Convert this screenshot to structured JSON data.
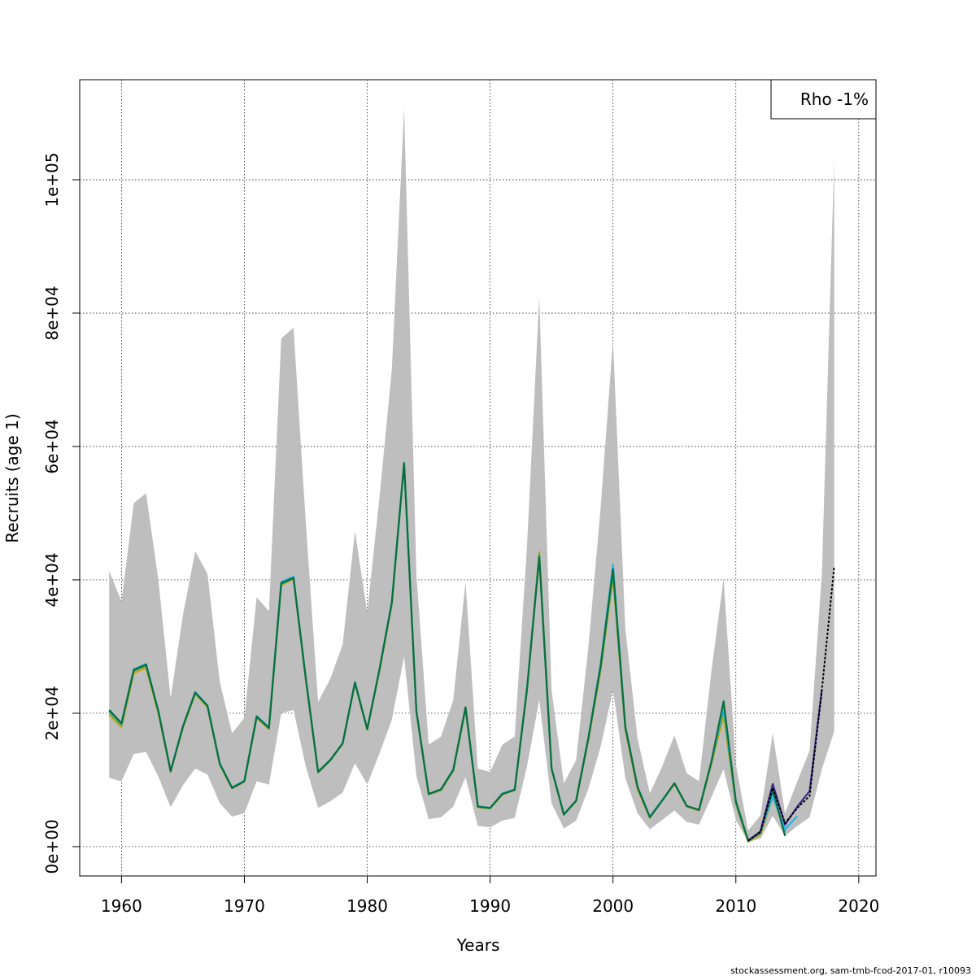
{
  "chart_data": {
    "type": "line",
    "title": "",
    "xlabel": "Years",
    "ylabel": "Recruits (age 1)",
    "xlim": [
      1956.6,
      2021.4
    ],
    "ylim": [
      -4400,
      115000
    ],
    "x_ticks": [
      1960,
      1970,
      1980,
      1990,
      2000,
      2010,
      2020
    ],
    "x_tick_labels": [
      "1960",
      "1970",
      "1980",
      "1990",
      "2000",
      "2010",
      "2020"
    ],
    "y_ticks": [
      0,
      20000,
      40000,
      60000,
      80000,
      100000
    ],
    "y_tick_labels": [
      "0e+00",
      "2e+04",
      "4e+04",
      "6e+04",
      "8e+04",
      "1e+05"
    ],
    "grid": true,
    "legend_position": "top-right",
    "legend_text": "Rho -1%",
    "footer": "stockassessment.org, sam-tmb-fcod-2017-01, r10093",
    "confidence_band": {
      "color": "#bebebe",
      "x": [
        1959,
        1960,
        1961,
        1962,
        1963,
        1964,
        1965,
        1966,
        1967,
        1968,
        1969,
        1970,
        1971,
        1972,
        1973,
        1974,
        1975,
        1976,
        1977,
        1978,
        1979,
        1980,
        1981,
        1982,
        1983,
        1984,
        1985,
        1986,
        1987,
        1988,
        1989,
        1990,
        1991,
        1992,
        1993,
        1994,
        1995,
        1996,
        1997,
        1998,
        1999,
        2000,
        2001,
        2002,
        2003,
        2004,
        2005,
        2006,
        2007,
        2008,
        2009,
        2010,
        2011,
        2012,
        2013,
        2014,
        2015,
        2016,
        2017,
        2018
      ],
      "lower": [
        10300,
        9800,
        13900,
        14200,
        10500,
        5900,
        9200,
        11700,
        10800,
        6500,
        4500,
        5000,
        9800,
        9300,
        20000,
        20500,
        12000,
        5800,
        6800,
        8100,
        12500,
        9300,
        14000,
        19000,
        28500,
        10600,
        4100,
        4400,
        6000,
        10400,
        3100,
        2900,
        3900,
        4300,
        12000,
        22000,
        6500,
        2700,
        3900,
        8700,
        15000,
        23500,
        10300,
        5000,
        2600,
        4000,
        5400,
        3700,
        3300,
        7400,
        11600,
        4000,
        700,
        1200,
        4600,
        1600,
        3100,
        4400,
        11600,
        17300
      ],
      "upper": [
        41300,
        36800,
        51500,
        53000,
        40000,
        22300,
        34700,
        44300,
        40900,
        24700,
        17000,
        19300,
        37400,
        35300,
        76200,
        77800,
        48600,
        21700,
        25200,
        30300,
        47300,
        35100,
        52500,
        71500,
        110700,
        40800,
        15300,
        16500,
        22000,
        39700,
        11700,
        11200,
        15300,
        16500,
        45000,
        82500,
        23500,
        9500,
        13000,
        30000,
        51000,
        76000,
        32700,
        16200,
        8000,
        12000,
        16700,
        11000,
        9800,
        26200,
        40200,
        12300,
        2400,
        4700,
        17000,
        5000,
        9800,
        14400,
        41000,
        103000
      ]
    },
    "series": [
      {
        "color": "#d4a017",
        "x": [
          1959,
          1960,
          1961,
          1962,
          1963,
          1964,
          1965,
          1966,
          1967,
          1968,
          1969,
          1970,
          1971,
          1972,
          1973,
          1974,
          1975,
          1976,
          1977,
          1978,
          1979,
          1980,
          1981,
          1982,
          1983,
          1984,
          1985,
          1986,
          1987,
          1988,
          1989,
          1990,
          1991,
          1992,
          1993,
          1994,
          1995,
          1996,
          1997,
          1998,
          1999,
          2000,
          2001,
          2002,
          2003,
          2004,
          2005,
          2006,
          2007,
          2008,
          2009,
          2010,
          2011,
          2012,
          2013
        ],
        "y": [
          19800,
          17900,
          26000,
          26800,
          20000,
          11200,
          17800,
          22900,
          20900,
          12300,
          8700,
          9700,
          19300,
          17600,
          39200,
          40100,
          25000,
          11100,
          12900,
          15400,
          24500,
          17500,
          26400,
          36300,
          57500,
          20200,
          7800,
          8400,
          11400,
          20600,
          5900,
          5700,
          7800,
          8500,
          23500,
          44200,
          11700,
          4800,
          6800,
          16000,
          26500,
          40400,
          17500,
          8600,
          4300,
          6900,
          9400,
          6000,
          5400,
          12300,
          19600,
          6300,
          700,
          1800,
          7400
        ]
      },
      {
        "color": "#7ab33a",
        "x": [
          1959,
          1960,
          1961,
          1962,
          1963,
          1964,
          1965,
          1966,
          1967,
          1968,
          1969,
          1970,
          1971,
          1972,
          1973,
          1974,
          1975,
          1976,
          1977,
          1978,
          1979,
          1980,
          1981,
          1982,
          1983,
          1984,
          1985,
          1986,
          1987,
          1988,
          1989,
          1990,
          1991,
          1992,
          1993,
          1994,
          1995,
          1996,
          1997,
          1998,
          1999,
          2000,
          2001,
          2002,
          2003,
          2004,
          2005,
          2006,
          2007,
          2008,
          2009,
          2010,
          2011,
          2012,
          2013,
          2014
        ],
        "y": [
          20100,
          18200,
          26300,
          27100,
          20200,
          11300,
          17900,
          23000,
          21000,
          12400,
          8800,
          9800,
          19400,
          17700,
          39300,
          40200,
          25100,
          11100,
          12900,
          15400,
          24500,
          17600,
          26500,
          36400,
          57400,
          20300,
          7800,
          8500,
          11400,
          20700,
          6000,
          5700,
          7900,
          8500,
          23400,
          44000,
          11700,
          4800,
          6800,
          16200,
          26800,
          40800,
          17800,
          8800,
          4400,
          6900,
          9400,
          6000,
          5500,
          12500,
          20400,
          6500,
          800,
          2000,
          7800,
          2200
        ]
      },
      {
        "color": "#1f9e89",
        "x": [
          1959,
          1960,
          1961,
          1962,
          1963,
          1964,
          1965,
          1966,
          1967,
          1968,
          1969,
          1970,
          1971,
          1972,
          1973,
          1974,
          1975,
          1976,
          1977,
          1978,
          1979,
          1980,
          1981,
          1982,
          1983,
          1984,
          1985,
          1986,
          1987,
          1988,
          1989,
          1990,
          1991,
          1992,
          1993,
          1994,
          1995,
          1996,
          1997,
          1998,
          1999,
          2000,
          2001,
          2002,
          2003,
          2004,
          2005,
          2006,
          2007,
          2008,
          2009,
          2010,
          2011,
          2012,
          2013,
          2014
        ],
        "y": [
          20300,
          18300,
          26400,
          27200,
          20300,
          11300,
          18000,
          23100,
          21100,
          12500,
          8800,
          9800,
          19400,
          17800,
          39400,
          40300,
          25200,
          11200,
          13000,
          15500,
          24600,
          17600,
          26600,
          36500,
          57400,
          20300,
          7900,
          8500,
          11500,
          20800,
          6000,
          5800,
          7900,
          8600,
          23600,
          43600,
          11800,
          4800,
          6900,
          16300,
          27000,
          41300,
          17900,
          8900,
          4400,
          6900,
          9500,
          6100,
          5500,
          12600,
          20800,
          6600,
          850,
          2100,
          8000,
          2400
        ]
      },
      {
        "color": "#29b6e8",
        "x": [
          1959,
          1960,
          1961,
          1962,
          1963,
          1964,
          1965,
          1966,
          1967,
          1968,
          1969,
          1970,
          1971,
          1972,
          1973,
          1974,
          1975,
          1976,
          1977,
          1978,
          1979,
          1980,
          1981,
          1982,
          1983,
          1984,
          1985,
          1986,
          1987,
          1988,
          1989,
          1990,
          1991,
          1992,
          1993,
          1994,
          1995,
          1996,
          1997,
          1998,
          1999,
          2000,
          2001,
          2002,
          2003,
          2004,
          2005,
          2006,
          2007,
          2008,
          2009,
          2010,
          2011,
          2012,
          2013,
          2014,
          2015
        ],
        "y": [
          20400,
          18400,
          26600,
          27400,
          20400,
          11400,
          18100,
          23200,
          21200,
          12500,
          8900,
          9900,
          19600,
          17900,
          39700,
          40500,
          25300,
          11200,
          13000,
          15500,
          24700,
          17700,
          26700,
          36700,
          57600,
          20400,
          7900,
          8600,
          11600,
          20900,
          6100,
          5800,
          8000,
          8600,
          23700,
          43500,
          11800,
          4900,
          6900,
          16400,
          27500,
          42300,
          18100,
          9000,
          4500,
          7000,
          9500,
          6100,
          5500,
          12700,
          21100,
          6700,
          900,
          2200,
          7500,
          2600,
          4600
        ]
      },
      {
        "color": "#0b6e3c",
        "x": [
          1959,
          1960,
          1961,
          1962,
          1963,
          1964,
          1965,
          1966,
          1967,
          1968,
          1969,
          1970,
          1971,
          1972,
          1973,
          1974,
          1975,
          1976,
          1977,
          1978,
          1979,
          1980,
          1981,
          1982,
          1983,
          1984,
          1985,
          1986,
          1987,
          1988,
          1989,
          1990,
          1991,
          1992,
          1993,
          1994,
          1995,
          1996,
          1997,
          1998,
          1999,
          2000,
          2001,
          2002,
          2003,
          2004,
          2005,
          2006,
          2007,
          2008,
          2009,
          2010,
          2011,
          2012,
          2013,
          2014
        ],
        "y": [
          20500,
          18500,
          26500,
          27300,
          20300,
          11300,
          18000,
          23100,
          21100,
          12400,
          8800,
          9800,
          19500,
          17800,
          39500,
          40300,
          25200,
          11200,
          13000,
          15500,
          24600,
          17600,
          26600,
          36600,
          57500,
          20300,
          7900,
          8600,
          11500,
          20900,
          6000,
          5800,
          7900,
          8500,
          23600,
          43400,
          11700,
          4800,
          6900,
          16300,
          27200,
          41600,
          18000,
          8900,
          4400,
          6900,
          9500,
          6100,
          5500,
          12700,
          21800,
          6800,
          900,
          2200,
          8600,
          1600
        ]
      },
      {
        "color": "#3a2a8c",
        "x": [
          2011,
          2012,
          2013,
          2014,
          2015,
          2016,
          2017
        ],
        "y": [
          900,
          2300,
          9400,
          3300,
          6000,
          8300,
          23600
        ]
      },
      {
        "color": "#000000",
        "dashed": true,
        "x": [
          2011,
          2012,
          2013,
          2014,
          2015,
          2016,
          2017,
          2018
        ],
        "y": [
          900,
          2200,
          8800,
          3500,
          5800,
          7600,
          23500,
          42000
        ]
      }
    ]
  }
}
